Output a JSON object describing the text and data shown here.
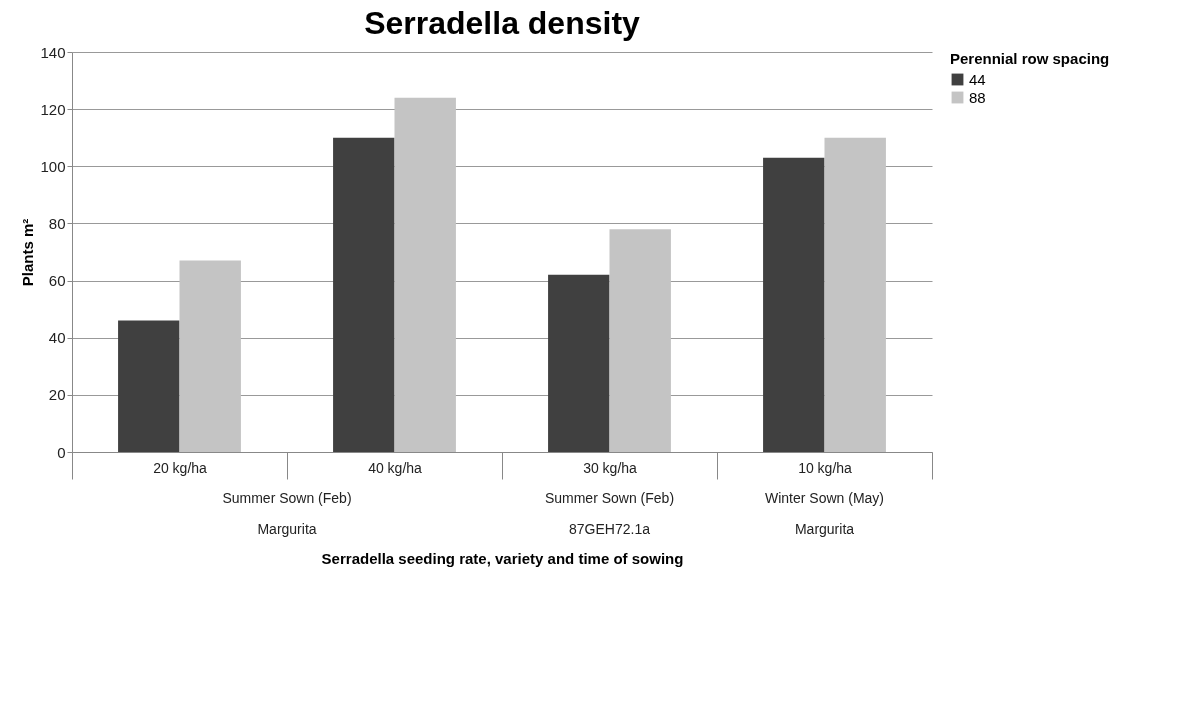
{
  "chart_data": {
    "type": "bar",
    "title": "Serradella density",
    "xlabel": "Serradella  seeding rate, variety and time of sowing",
    "ylabel": "Plants m²",
    "legend_title": "Perennial row spacing",
    "categories": [
      "20 kg/ha",
      "40 kg/ha",
      "30 kg/ha",
      "10 kg/ha"
    ],
    "series": [
      {
        "name": "44",
        "color": "#404040",
        "values": [
          46,
          110,
          62,
          103
        ]
      },
      {
        "name": "88",
        "color": "#c4c4c4",
        "values": [
          67,
          124,
          78,
          110
        ]
      }
    ],
    "annotations": [
      "Summer Sown (Feb)",
      "Summer Sown (Feb)",
      "Winter Sown (May)",
      "Margurita",
      "87GEH72.1a",
      "Margurita"
    ],
    "ylim": [
      0,
      140
    ],
    "yticks": [
      0,
      20,
      40,
      60,
      80,
      100,
      120,
      140
    ],
    "grid": "y",
    "legend": "right"
  }
}
